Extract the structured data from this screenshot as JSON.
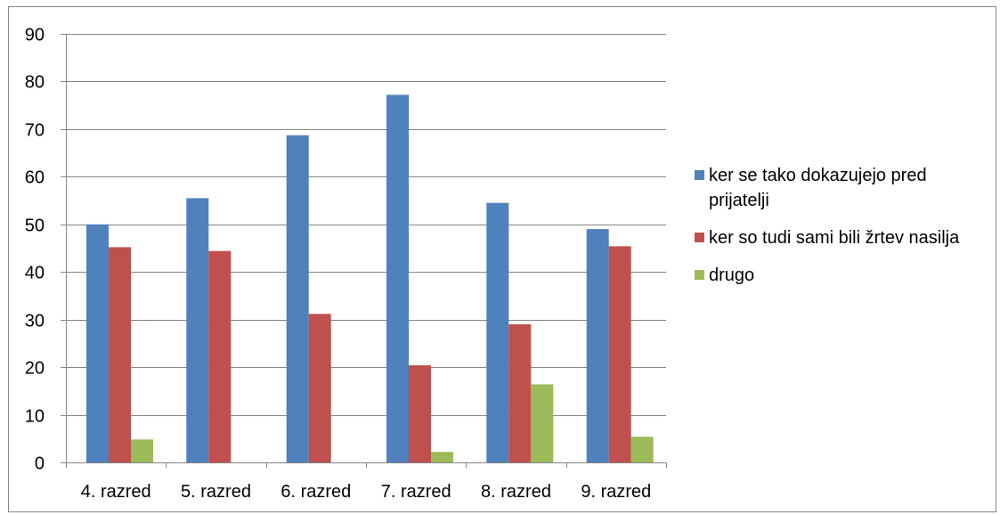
{
  "chart_data": {
    "type": "bar",
    "title": "",
    "xlabel": "",
    "ylabel": "",
    "categories": [
      "4. razred",
      "5. razred",
      "6. razred",
      "7. razred",
      "8. razred",
      "9. razred"
    ],
    "ylim": [
      0,
      90
    ],
    "yticks": [
      0,
      10,
      20,
      30,
      40,
      50,
      60,
      70,
      80,
      90
    ],
    "grid": true,
    "legend_position": "right",
    "series": [
      {
        "name": "ker se tako dokazujejo pred prijatelji",
        "color": "#4F81BD",
        "values": [
          50,
          55.5,
          68.7,
          77.2,
          54.5,
          49
        ]
      },
      {
        "name": "ker so tudi sami bili žrtev nasilja",
        "color": "#C0504D",
        "values": [
          45.2,
          44.4,
          31.2,
          20.4,
          29,
          45.4
        ]
      },
      {
        "name": "drugo",
        "color": "#9BBB59",
        "values": [
          4.8,
          0,
          0,
          2.2,
          16.4,
          5.4
        ]
      }
    ]
  }
}
